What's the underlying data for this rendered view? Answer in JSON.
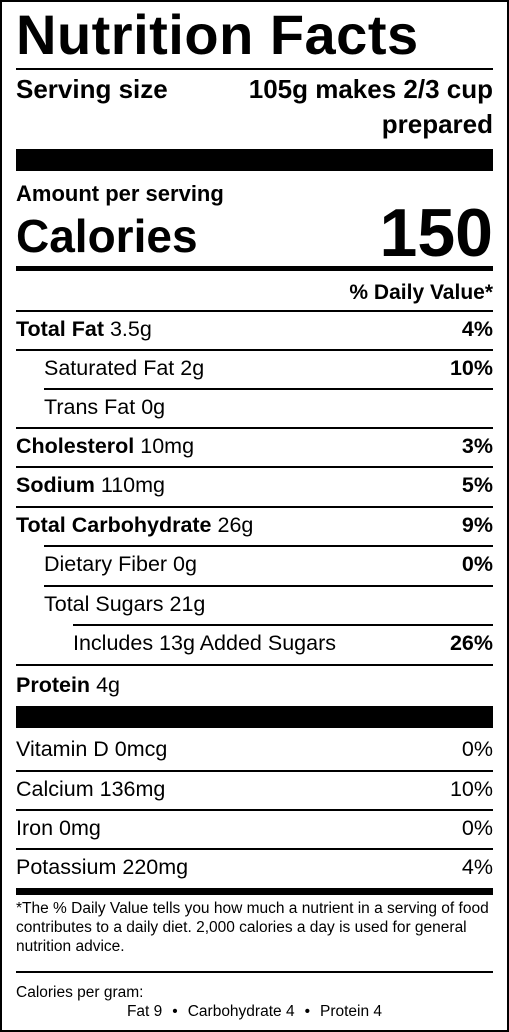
{
  "title": "Nutrition Facts",
  "serving": {
    "label": "Serving size",
    "value": "105g makes 2/3 cup prepared"
  },
  "calories": {
    "amount_per_serving": "Amount per serving",
    "label": "Calories",
    "value": "150"
  },
  "daily_value_header": "% Daily Value*",
  "nutrients": [
    {
      "name": "Total Fat",
      "amount": "3.5g",
      "dv": "4%"
    },
    {
      "name": "Saturated Fat",
      "amount": "2g",
      "dv": "10%"
    },
    {
      "name": "Trans Fat",
      "amount": "0g",
      "dv": ""
    },
    {
      "name": "Cholesterol",
      "amount": "10mg",
      "dv": "3%"
    },
    {
      "name": "Sodium",
      "amount": "110mg",
      "dv": "5%"
    },
    {
      "name": "Total Carbohydrate",
      "amount": "26g",
      "dv": "9%"
    },
    {
      "name": "Dietary Fiber",
      "amount": "0g",
      "dv": "0%"
    },
    {
      "name": "Total Sugars",
      "amount": "21g",
      "dv": ""
    },
    {
      "name": "Includes 13g Added Sugars",
      "amount": "",
      "dv": "26%"
    },
    {
      "name": "Protein",
      "amount": "4g",
      "dv": ""
    }
  ],
  "vitamins": [
    {
      "name": "Vitamin D",
      "amount": "0mcg",
      "dv": "0%"
    },
    {
      "name": "Calcium",
      "amount": "136mg",
      "dv": "10%"
    },
    {
      "name": "Iron",
      "amount": "0mg",
      "dv": "0%"
    },
    {
      "name": "Potassium",
      "amount": "220mg",
      "dv": "4%"
    }
  ],
  "footnote": "*The % Daily Value tells you how much a nutrient in a serving of food contributes to a daily diet. 2,000 calories a day is used for general nutrition advice.",
  "calories_per_gram": {
    "label": "Calories per gram:",
    "fat": "Fat 9",
    "carbohydrate": "Carbohydrate 4",
    "protein": "Protein 4",
    "separator": "•"
  }
}
